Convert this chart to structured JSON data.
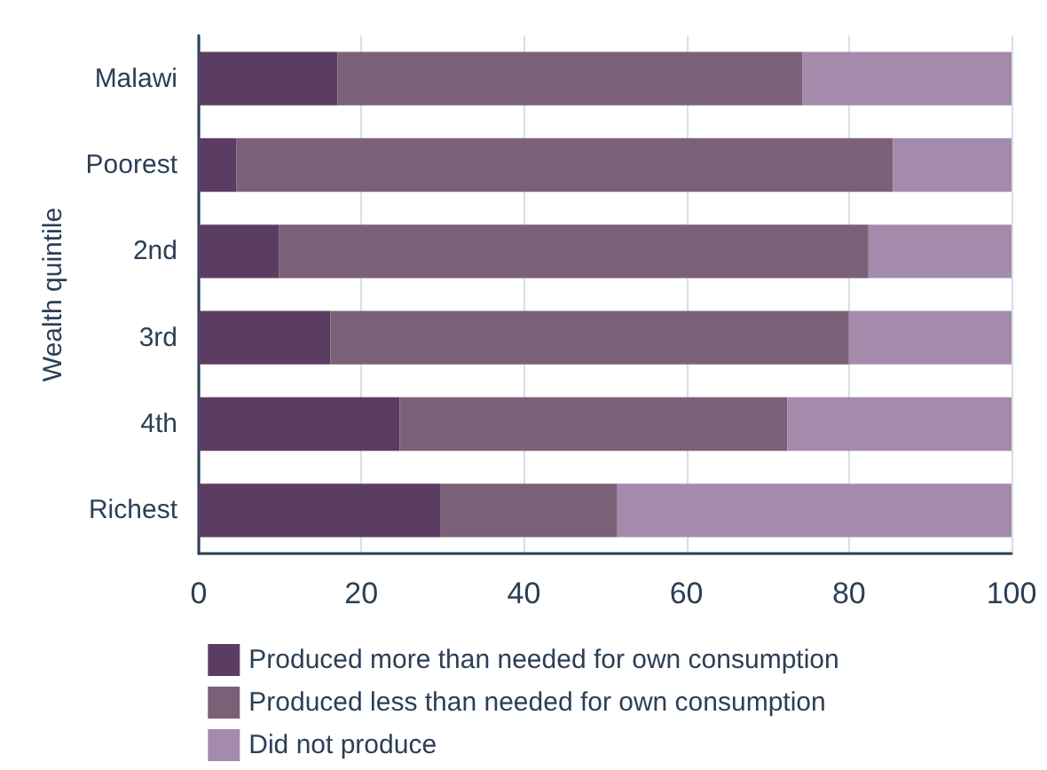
{
  "chart_data": {
    "type": "bar",
    "orientation": "horizontal",
    "stacked": true,
    "ylabel": "Wealth quintile",
    "categories": [
      "Malawi",
      "Poorest",
      "2nd",
      "3rd",
      "4th",
      "Richest"
    ],
    "series": [
      {
        "name": "Produced more than needed for own consumption",
        "color": "#5b3d63",
        "values": [
          17.1,
          4.6,
          9.9,
          16.2,
          24.7,
          29.7
        ]
      },
      {
        "name": "Produced less than needed for own consumption",
        "color": "#7b6177",
        "values": [
          57.2,
          80.8,
          72.5,
          63.8,
          47.7,
          21.8
        ]
      },
      {
        "name": "Did not produce",
        "color": "#a48bab",
        "values": [
          25.7,
          14.6,
          17.6,
          20.0,
          27.6,
          48.5
        ]
      }
    ],
    "xlim": [
      0,
      100
    ],
    "xticks": [
      0,
      20,
      40,
      60,
      80,
      100
    ],
    "grid": "x",
    "legend": "bottom"
  }
}
